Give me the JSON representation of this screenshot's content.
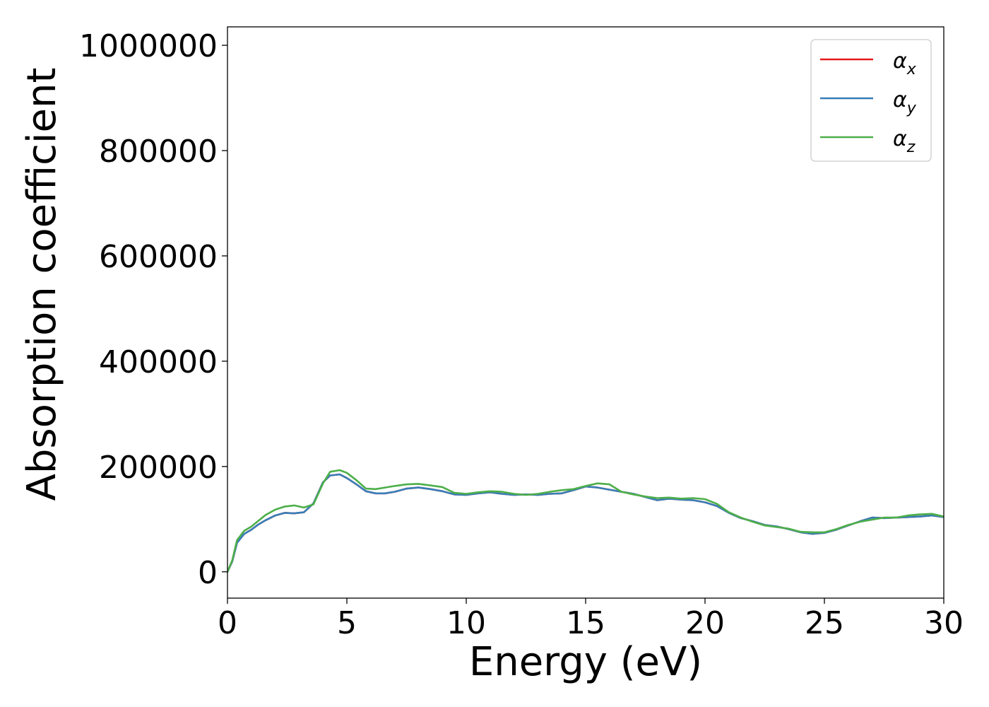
{
  "chart_data": {
    "type": "line",
    "title": "",
    "xlabel": "Energy (eV)",
    "ylabel": "Absorption coefficient",
    "xlim": [
      0,
      30
    ],
    "ylim": [
      -50000,
      1035000
    ],
    "xticks": [
      0,
      5,
      10,
      15,
      20,
      25,
      30
    ],
    "yticks": [
      0,
      200000,
      400000,
      600000,
      800000,
      1000000
    ],
    "grid": false,
    "legend_position": "top-right",
    "series": [
      {
        "name": "α_x",
        "legend_base": "α",
        "legend_sub": "x",
        "color": "#e41a1c",
        "x": [
          0,
          0.2,
          0.4,
          0.7,
          1.0,
          1.3,
          1.6,
          2.0,
          2.4,
          2.8,
          3.2,
          3.6,
          4.0,
          4.3,
          4.7,
          5.0,
          5.4,
          5.8,
          6.2,
          6.6,
          7.0,
          7.5,
          8.0,
          8.5,
          9.0,
          9.5,
          10.0,
          10.5,
          11.0,
          11.5,
          12.0,
          12.5,
          13.0,
          13.5,
          14.0,
          14.5,
          15.0,
          15.5,
          16.0,
          16.5,
          17.0,
          17.5,
          18.0,
          18.5,
          19.0,
          19.5,
          20.0,
          20.5,
          21.0,
          21.5,
          22.0,
          22.5,
          23.0,
          23.5,
          24.0,
          24.5,
          25.0,
          25.5,
          26.0,
          26.5,
          27.0,
          27.5,
          28.0,
          28.5,
          29.0,
          29.5,
          30.0
        ],
        "y": [
          0,
          20000,
          55000,
          72000,
          80000,
          90000,
          98000,
          107000,
          112000,
          111000,
          113000,
          130000,
          170000,
          183000,
          185000,
          178000,
          166000,
          153000,
          149000,
          149000,
          152000,
          158000,
          160000,
          157000,
          153000,
          147000,
          146000,
          149000,
          151000,
          148000,
          146000,
          147000,
          146000,
          148000,
          149000,
          155000,
          162000,
          160000,
          156000,
          152000,
          148000,
          142000,
          136000,
          139000,
          137000,
          136000,
          132000,
          125000,
          112000,
          102000,
          96000,
          89000,
          86000,
          81000,
          75000,
          72000,
          74000,
          80000,
          88000,
          96000,
          103000,
          102000,
          103000,
          104000,
          105000,
          107000,
          104000
        ]
      },
      {
        "name": "α_y",
        "legend_base": "α",
        "legend_sub": "y",
        "color": "#377eb8",
        "x": [
          0,
          0.2,
          0.4,
          0.7,
          1.0,
          1.3,
          1.6,
          2.0,
          2.4,
          2.8,
          3.2,
          3.6,
          4.0,
          4.3,
          4.7,
          5.0,
          5.4,
          5.8,
          6.2,
          6.6,
          7.0,
          7.5,
          8.0,
          8.5,
          9.0,
          9.5,
          10.0,
          10.5,
          11.0,
          11.5,
          12.0,
          12.5,
          13.0,
          13.5,
          14.0,
          14.5,
          15.0,
          15.5,
          16.0,
          16.5,
          17.0,
          17.5,
          18.0,
          18.5,
          19.0,
          19.5,
          20.0,
          20.5,
          21.0,
          21.5,
          22.0,
          22.5,
          23.0,
          23.5,
          24.0,
          24.5,
          25.0,
          25.5,
          26.0,
          26.5,
          27.0,
          27.5,
          28.0,
          28.5,
          29.0,
          29.5,
          30.0
        ],
        "y": [
          0,
          20000,
          55000,
          72000,
          80000,
          90000,
          98000,
          107000,
          112000,
          111000,
          113000,
          130000,
          170000,
          183000,
          185000,
          178000,
          166000,
          153000,
          149000,
          149000,
          152000,
          158000,
          160000,
          157000,
          153000,
          147000,
          146000,
          149000,
          151000,
          148000,
          146000,
          147000,
          146000,
          148000,
          149000,
          155000,
          162000,
          160000,
          156000,
          152000,
          148000,
          142000,
          136000,
          139000,
          137000,
          136000,
          132000,
          125000,
          112000,
          102000,
          96000,
          89000,
          86000,
          81000,
          75000,
          72000,
          74000,
          80000,
          88000,
          96000,
          103000,
          102000,
          103000,
          104000,
          105000,
          107000,
          104000
        ]
      },
      {
        "name": "α_z",
        "legend_base": "α",
        "legend_sub": "z",
        "color": "#4daf4a",
        "x": [
          0,
          0.2,
          0.4,
          0.7,
          1.0,
          1.3,
          1.6,
          2.0,
          2.4,
          2.8,
          3.2,
          3.6,
          4.0,
          4.3,
          4.7,
          5.0,
          5.4,
          5.8,
          6.2,
          6.6,
          7.0,
          7.5,
          8.0,
          8.5,
          9.0,
          9.5,
          10.0,
          10.5,
          11.0,
          11.5,
          12.0,
          12.5,
          13.0,
          13.5,
          14.0,
          14.5,
          15.0,
          15.5,
          16.0,
          16.5,
          17.0,
          17.5,
          18.0,
          18.5,
          19.0,
          19.5,
          20.0,
          20.5,
          21.0,
          21.5,
          22.0,
          22.5,
          23.0,
          23.5,
          24.0,
          24.5,
          25.0,
          25.5,
          26.0,
          26.5,
          27.0,
          27.5,
          28.0,
          28.5,
          29.0,
          29.5,
          30.0
        ],
        "y": [
          0,
          22000,
          60000,
          78000,
          86000,
          97000,
          108000,
          118000,
          124000,
          126000,
          122000,
          128000,
          168000,
          190000,
          193000,
          188000,
          174000,
          158000,
          157000,
          160000,
          163000,
          166000,
          167000,
          164000,
          161000,
          150000,
          148000,
          151000,
          153000,
          152000,
          148000,
          146000,
          148000,
          152000,
          155000,
          157000,
          163000,
          168000,
          166000,
          152000,
          147000,
          143000,
          140000,
          141000,
          139000,
          140000,
          138000,
          129000,
          113000,
          103000,
          95000,
          88000,
          85000,
          82000,
          76000,
          75000,
          75000,
          81000,
          89000,
          95000,
          99000,
          103000,
          103000,
          107000,
          109000,
          110000,
          105000
        ]
      }
    ]
  }
}
